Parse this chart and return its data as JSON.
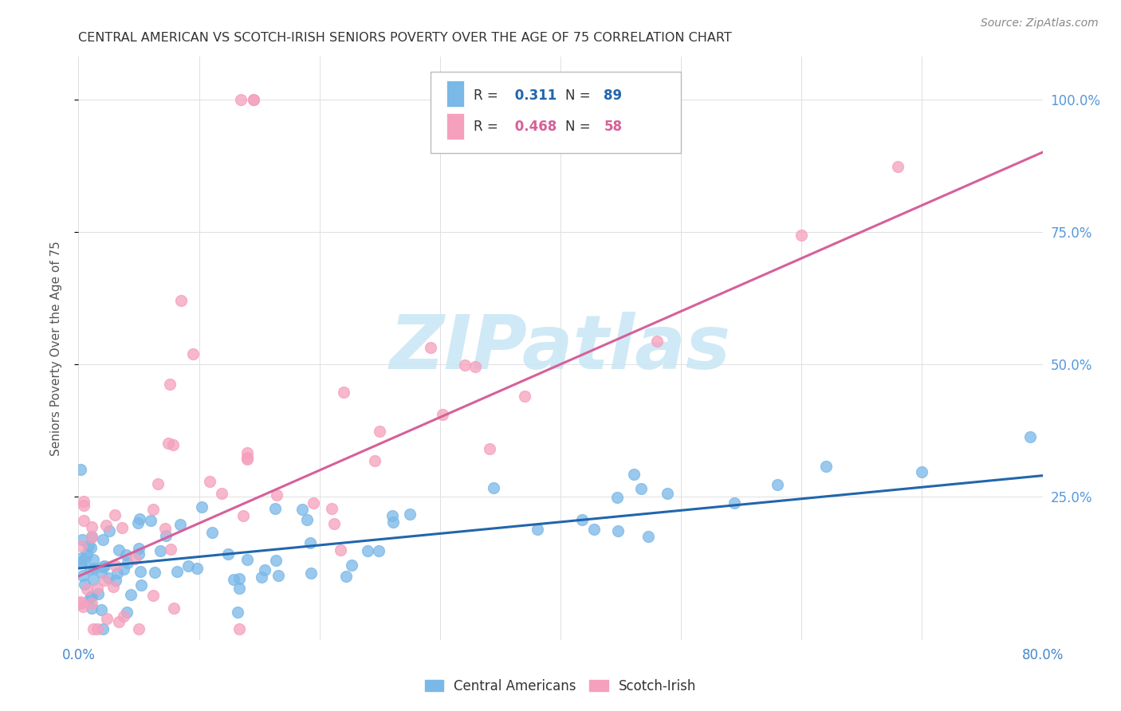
{
  "title": "CENTRAL AMERICAN VS SCOTCH-IRISH SENIORS POVERTY OVER THE AGE OF 75 CORRELATION CHART",
  "source": "Source: ZipAtlas.com",
  "ylabel": "Seniors Poverty Over the Age of 75",
  "xlim": [
    0.0,
    0.8
  ],
  "ylim": [
    -0.02,
    1.08
  ],
  "xtick_positions": [
    0.0,
    0.1,
    0.2,
    0.3,
    0.4,
    0.5,
    0.6,
    0.7,
    0.8
  ],
  "xtick_labels": [
    "0.0%",
    "",
    "",
    "",
    "",
    "",
    "",
    "",
    "80.0%"
  ],
  "yticks_right": [
    0.25,
    0.5,
    0.75,
    1.0
  ],
  "R_blue": 0.311,
  "N_blue": 89,
  "R_pink": 0.468,
  "N_pink": 58,
  "blue_line_x": [
    0.0,
    0.8
  ],
  "blue_line_y": [
    0.115,
    0.29
  ],
  "pink_line_x": [
    0.0,
    0.8
  ],
  "pink_line_y": [
    0.1,
    0.9
  ],
  "blue_scatter_color": "#7ab8e8",
  "pink_scatter_color": "#f5a0bc",
  "blue_line_color": "#2166ac",
  "pink_line_color": "#d6609a",
  "watermark_text": "ZIPatlas",
  "watermark_color": "#c8e6f5",
  "background_color": "#ffffff",
  "grid_color": "#e0e0e0",
  "legend_box_color": "#f0f8ff",
  "bottom_legend_label1": "Central Americans",
  "bottom_legend_label2": "Scotch-Irish",
  "title_color": "#333333",
  "source_color": "#888888",
  "axis_label_color": "#555555",
  "right_tick_color": "#5599dd"
}
